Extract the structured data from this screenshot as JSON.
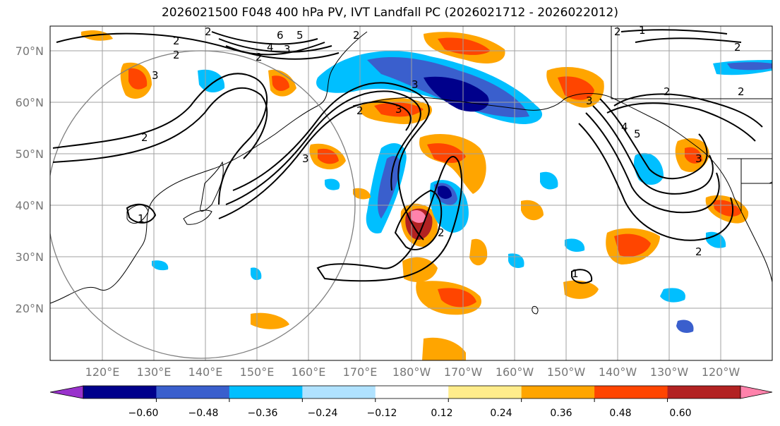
{
  "title": "2026021500 F048 400 hPa PV, IVT Landfall PC (2026021712 - 2026022012)",
  "lat_labels": [
    "70°N",
    "60°N",
    "50°N",
    "40°N",
    "30°N",
    "20°N"
  ],
  "lon_labels": [
    "120°E",
    "130°E",
    "140°E",
    "150°E",
    "160°E",
    "170°E",
    "180°W",
    "170°W",
    "160°W",
    "150°W",
    "140°W",
    "130°W",
    "120°W"
  ],
  "colorbar": {
    "tick_labels": [
      "−0.60",
      "−0.48",
      "−0.36",
      "−0.24",
      "−0.12",
      "0.12",
      "0.24",
      "0.36",
      "0.48",
      "0.60"
    ],
    "colors": [
      "#9932cc",
      "#00008b",
      "#3a5fcd",
      "#00bfff",
      "#b0e2ff",
      "#ffffff",
      "#ffec8b",
      "#ffa500",
      "#ff4500",
      "#b22222",
      "#ff82ab"
    ]
  },
  "contour_labels": [
    "2",
    "2",
    "3",
    "2",
    "2",
    "6",
    "5",
    "4",
    "3",
    "2",
    "2",
    "3",
    "3",
    "3",
    "2",
    "2",
    "2",
    "2",
    "1",
    "3",
    "3",
    "4",
    "5",
    "2",
    "2",
    "2",
    "1",
    "1"
  ]
}
